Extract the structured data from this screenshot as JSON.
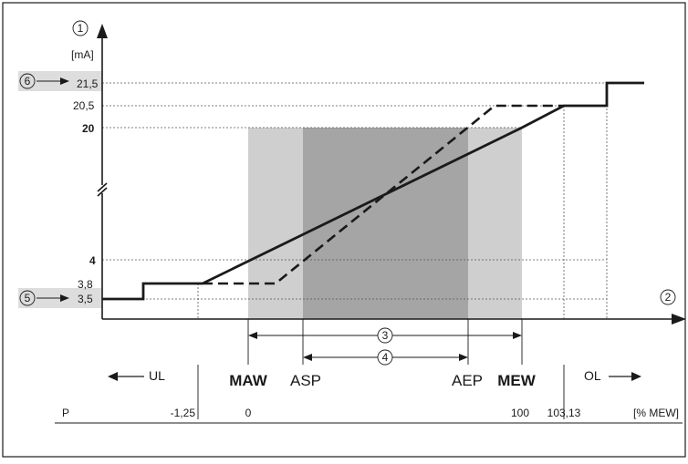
{
  "figure": {
    "axis_marker_y": "1",
    "axis_marker_x": "2",
    "y_unit": "[mA]",
    "y_ticks": [
      "21,5",
      "20,5",
      "20",
      "4",
      "3,8",
      "3,5"
    ],
    "callouts": {
      "c3": "3",
      "c4": "4",
      "c5": "5",
      "c6": "6"
    },
    "region_labels": {
      "ul": "UL",
      "maw": "MAW",
      "asp": "ASP",
      "aep": "AEP",
      "mew": "MEW",
      "ol": "OL"
    },
    "bottom_row": {
      "p": "P",
      "v1": "-1,25",
      "v2": "0",
      "v3": "100",
      "v4": "103,13",
      "unit": "[% MEW]"
    },
    "colors": {
      "outer_zone": "#cfcfcf",
      "inner_zone": "#a5a5a5",
      "callout_band": "#dddddd",
      "line": "#1a1a1a"
    }
  }
}
